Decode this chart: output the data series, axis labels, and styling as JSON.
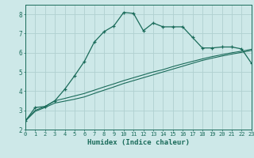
{
  "xlabel": "Humidex (Indice chaleur)",
  "ylabel": "",
  "background_color": "#cde8e8",
  "grid_color": "#b0d0d0",
  "line_color": "#1a6b5a",
  "xlim": [
    0,
    23
  ],
  "ylim": [
    2,
    8.5
  ],
  "yticks": [
    2,
    3,
    4,
    5,
    6,
    7,
    8
  ],
  "xticks": [
    0,
    1,
    2,
    3,
    4,
    5,
    6,
    7,
    8,
    9,
    10,
    11,
    12,
    13,
    14,
    15,
    16,
    17,
    18,
    19,
    20,
    21,
    22,
    23
  ],
  "line1_x": [
    0,
    1,
    2,
    3,
    4,
    5,
    6,
    7,
    8,
    9,
    10,
    11,
    12,
    13,
    14,
    15,
    16,
    17,
    18,
    19,
    20,
    21,
    22,
    23
  ],
  "line1_y": [
    2.45,
    3.15,
    3.2,
    3.5,
    4.1,
    4.8,
    5.55,
    6.55,
    7.1,
    7.4,
    8.1,
    8.05,
    7.15,
    7.55,
    7.35,
    7.35,
    7.35,
    6.8,
    6.25,
    6.25,
    6.3,
    6.3,
    6.2,
    5.45
  ],
  "line2_x": [
    0,
    1,
    2,
    3,
    4,
    5,
    6,
    7,
    8,
    9,
    10,
    11,
    12,
    13,
    14,
    15,
    16,
    17,
    18,
    19,
    20,
    21,
    22,
    23
  ],
  "line2_y": [
    2.45,
    3.0,
    3.2,
    3.5,
    3.62,
    3.75,
    3.88,
    4.05,
    4.22,
    4.38,
    4.55,
    4.7,
    4.85,
    5.0,
    5.12,
    5.28,
    5.42,
    5.55,
    5.68,
    5.8,
    5.9,
    6.0,
    6.08,
    6.18
  ],
  "line3_x": [
    0,
    1,
    2,
    3,
    4,
    5,
    6,
    7,
    8,
    9,
    10,
    11,
    12,
    13,
    14,
    15,
    16,
    17,
    18,
    19,
    20,
    21,
    22,
    23
  ],
  "line3_y": [
    2.45,
    2.95,
    3.15,
    3.38,
    3.48,
    3.58,
    3.7,
    3.88,
    4.05,
    4.22,
    4.4,
    4.55,
    4.7,
    4.85,
    5.0,
    5.15,
    5.3,
    5.45,
    5.6,
    5.72,
    5.83,
    5.93,
    6.02,
    6.12
  ]
}
